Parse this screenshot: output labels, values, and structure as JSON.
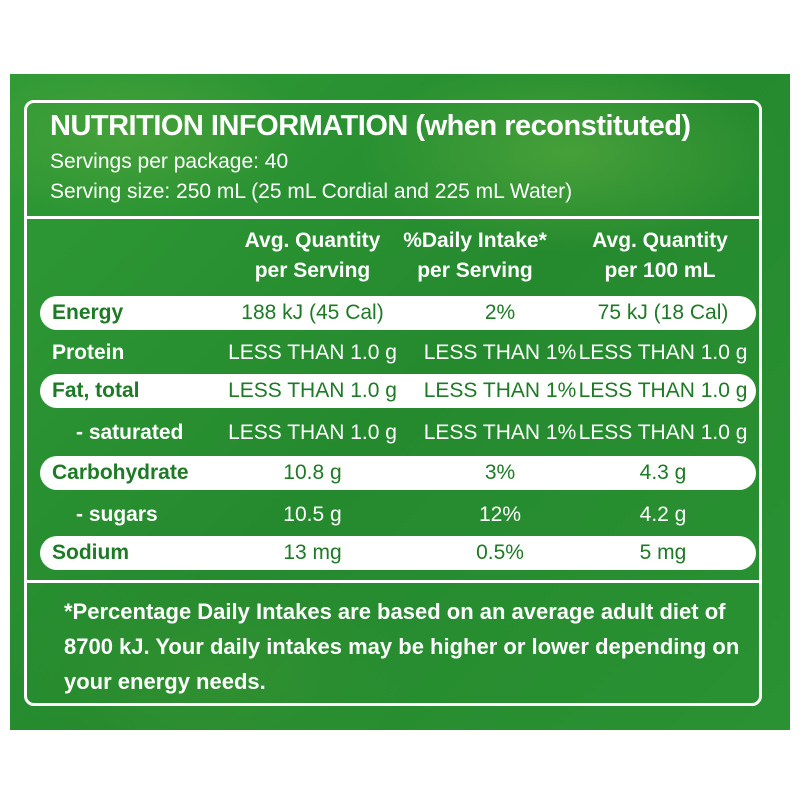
{
  "label": {
    "title": "NUTRITION INFORMATION (when reconstituted)",
    "servings_per_package": "Servings per package: 40",
    "serving_size": "Serving size: 250 mL (25 mL Cordial and 225 mL Water)",
    "columns": [
      {
        "line1": "Avg. Quantity",
        "line2": "per Serving"
      },
      {
        "line1": "%Daily Intake*",
        "line2": "per Serving"
      },
      {
        "line1": "Avg. Quantity",
        "line2": "per 100 mL"
      }
    ],
    "rows": [
      {
        "name": "Energy",
        "per_serving": "188 kJ (45 Cal)",
        "daily_intake": "2%",
        "per_100ml": "75 kJ (18 Cal)"
      },
      {
        "name": "Protein",
        "per_serving": "LESS THAN 1.0 g",
        "daily_intake": "LESS THAN 1%",
        "per_100ml": "LESS THAN 1.0 g"
      },
      {
        "name": "Fat, total",
        "per_serving": "LESS THAN 1.0 g",
        "daily_intake": "LESS THAN 1%",
        "per_100ml": "LESS THAN 1.0 g"
      },
      {
        "name": "- saturated",
        "per_serving": "LESS THAN 1.0 g",
        "daily_intake": "LESS THAN 1%",
        "per_100ml": "LESS THAN 1.0 g"
      },
      {
        "name": "Carbohydrate",
        "per_serving": "10.8 g",
        "daily_intake": "3%",
        "per_100ml": "4.3 g"
      },
      {
        "name": "- sugars",
        "per_serving": "10.5 g",
        "daily_intake": "12%",
        "per_100ml": "4.2 g"
      },
      {
        "name": "Sodium",
        "per_serving": "13 mg",
        "daily_intake": "0.5%",
        "per_100ml": "5 mg"
      }
    ],
    "footnote": "*Percentage Daily Intakes are based on an average adult diet of 8700 kJ. Your daily intakes may be higher or lower depending on your energy needs."
  },
  "colors": {
    "label_green": "#2a9233",
    "band_text": "#1d7a25",
    "panel_white": "#ffffff"
  }
}
